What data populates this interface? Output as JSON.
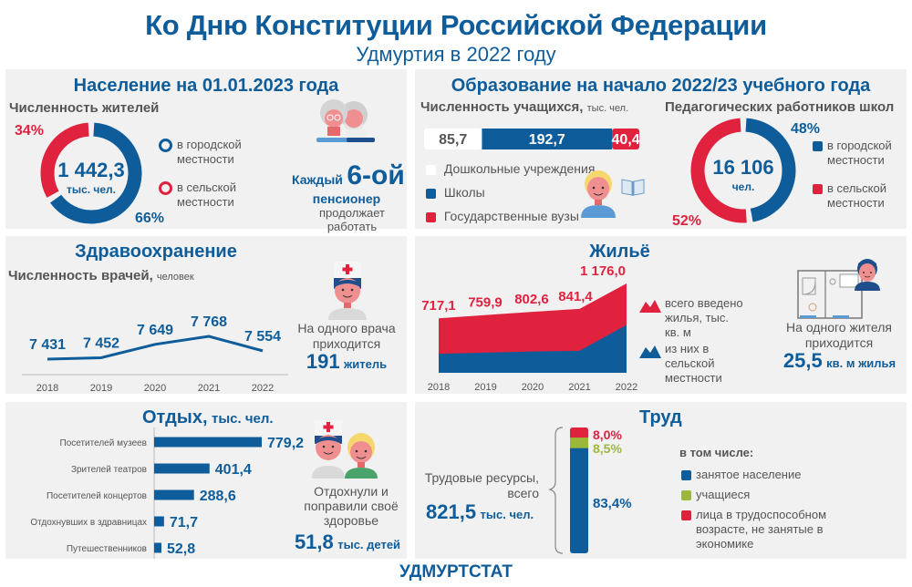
{
  "header": {
    "title": "Ко Дню Конституции Российской Федерации",
    "subtitle": "Удмуртия в 2022 году"
  },
  "colors": {
    "blue": "#0e5d9a",
    "red": "#e0223f",
    "green": "#9cb83a",
    "panel": "#f1f1f1",
    "text": "#555555"
  },
  "population": {
    "title": "Население на 01.01.2023 года",
    "subtitle": "Численность жителей",
    "total": "1 442,3",
    "unit": "тыс. чел.",
    "legend_urban": "в городской местности",
    "legend_rural": "в сельской местности",
    "pensioner_prefix": "Каждый",
    "pensioner_number": "6-ой",
    "pensioner_word": "пенсионер",
    "pensioner_text": "продолжает работать",
    "pensioner_icon": "elderly-couple-icon"
  },
  "education": {
    "title": "Образование на начало 2022/23 учебного года",
    "students_label": "Численность учащихся,",
    "students_unit": "тыс. чел.",
    "legend": [
      "Дошкольные учреждения",
      "Школы",
      "Государственные вузы"
    ],
    "student_icon": "student-icon",
    "book_icon": "book-icon",
    "teachers_label": "Педагогических работников школ",
    "teachers_total": "16 106",
    "teachers_unit": "чел.",
    "teachers_legend_urban": "в городской местности",
    "teachers_legend_rural": "в сельской местности"
  },
  "health": {
    "title": "Здравоохранение",
    "subtitle": "Численность врачей,",
    "subtitle_unit": "человек",
    "doctor_icon": "doctor-icon",
    "per_doctor_text": "На одного врача приходится",
    "per_doctor_value": "191",
    "per_doctor_unit": "житель"
  },
  "housing": {
    "title": "Жильё",
    "legend_total": "всего введено жилья, тыс. кв. м",
    "legend_rural": "из них в сельской местности",
    "apartment_icon": "apartment-plan-icon",
    "per_resident_text": "На одного жителя приходится",
    "per_resident_value": "25,5",
    "per_resident_unit": "кв. м жилья"
  },
  "leisure": {
    "title": "Отдых,",
    "title_unit": "тыс. чел.",
    "kids_icon": "nurse-and-child-icon",
    "kids_text": "Отдохнули и поправили своё здоровье",
    "kids_value": "51,8",
    "kids_unit": "тыс. детей"
  },
  "labor": {
    "title": "Труд",
    "resources_label": "Трудовые ресурсы, всего",
    "resources_value": "821,5",
    "resources_unit": "тыс. чел.",
    "legend_title": "в том числе:",
    "legend": [
      "занятое население",
      "учащиеся",
      "лица в трудоспособном возрасте, не занятые в экономике"
    ]
  },
  "footer": "УДМУРТСТАТ",
  "chart_data": [
    {
      "id": "population",
      "type": "pie",
      "title": "Численность жителей",
      "categories": [
        "в городской местности",
        "в сельской местности"
      ],
      "values": [
        66,
        34
      ],
      "labels": [
        "66%",
        "34%"
      ],
      "center": "1 442,3 тыс. чел."
    },
    {
      "id": "students",
      "type": "bar",
      "orientation": "stacked-horizontal",
      "title": "Численность учащихся, тыс. чел.",
      "categories": [
        "Дошкольные учреждения",
        "Школы",
        "Государственные вузы"
      ],
      "values": [
        85.7,
        192.7,
        40.4
      ],
      "labels": [
        "85,7",
        "192,7",
        "40,4"
      ]
    },
    {
      "id": "teachers",
      "type": "pie",
      "title": "Педагогических работников школ",
      "categories": [
        "в городской местности",
        "в сельской местности"
      ],
      "values": [
        48,
        52
      ],
      "labels": [
        "48%",
        "52%"
      ],
      "center": "16 106 чел."
    },
    {
      "id": "doctors",
      "type": "line",
      "title": "Численность врачей, человек",
      "x": [
        "2018",
        "2019",
        "2020",
        "2021",
        "2022"
      ],
      "values": [
        7431,
        7452,
        7649,
        7768,
        7554
      ],
      "labels": [
        "7 431",
        "7 452",
        "7 649",
        "7 768",
        "7 554"
      ],
      "ylim": [
        7300,
        7800
      ]
    },
    {
      "id": "housing",
      "type": "area",
      "title": "Жильё",
      "x": [
        "2018",
        "2019",
        "2020",
        "2021",
        "2022"
      ],
      "series": [
        {
          "name": "всего введено жилья, тыс. кв. м",
          "values": [
            717.1,
            759.9,
            802.6,
            841.4,
            1176.0
          ],
          "labels": [
            "717,1",
            "759,9",
            "802,6",
            "841,4",
            "1 176,0"
          ]
        },
        {
          "name": "из них в сельской местности",
          "values": [
            250,
            265,
            280,
            290,
            630
          ]
        }
      ],
      "ylim": [
        0,
        1200
      ]
    },
    {
      "id": "leisure",
      "type": "bar",
      "orientation": "horizontal",
      "title": "Отдых, тыс. чел.",
      "categories": [
        "Посетителей музеев",
        "Зрителей театров",
        "Посетителей концертов",
        "Отдохнувших в здравницах",
        "Путешественников"
      ],
      "values": [
        779.2,
        401.4,
        288.6,
        71.7,
        52.8
      ],
      "labels": [
        "779,2",
        "401,4",
        "288,6",
        "71,7",
        "52,8"
      ]
    },
    {
      "id": "labor",
      "type": "bar",
      "orientation": "stacked-vertical",
      "title": "Труд",
      "categories": [
        "занятое население",
        "учащиеся",
        "лица в трудоспособном возрасте, не занятые в экономике"
      ],
      "values": [
        83.4,
        8.5,
        8.0
      ],
      "labels": [
        "83,4%",
        "8,5%",
        "8,0%"
      ]
    }
  ]
}
